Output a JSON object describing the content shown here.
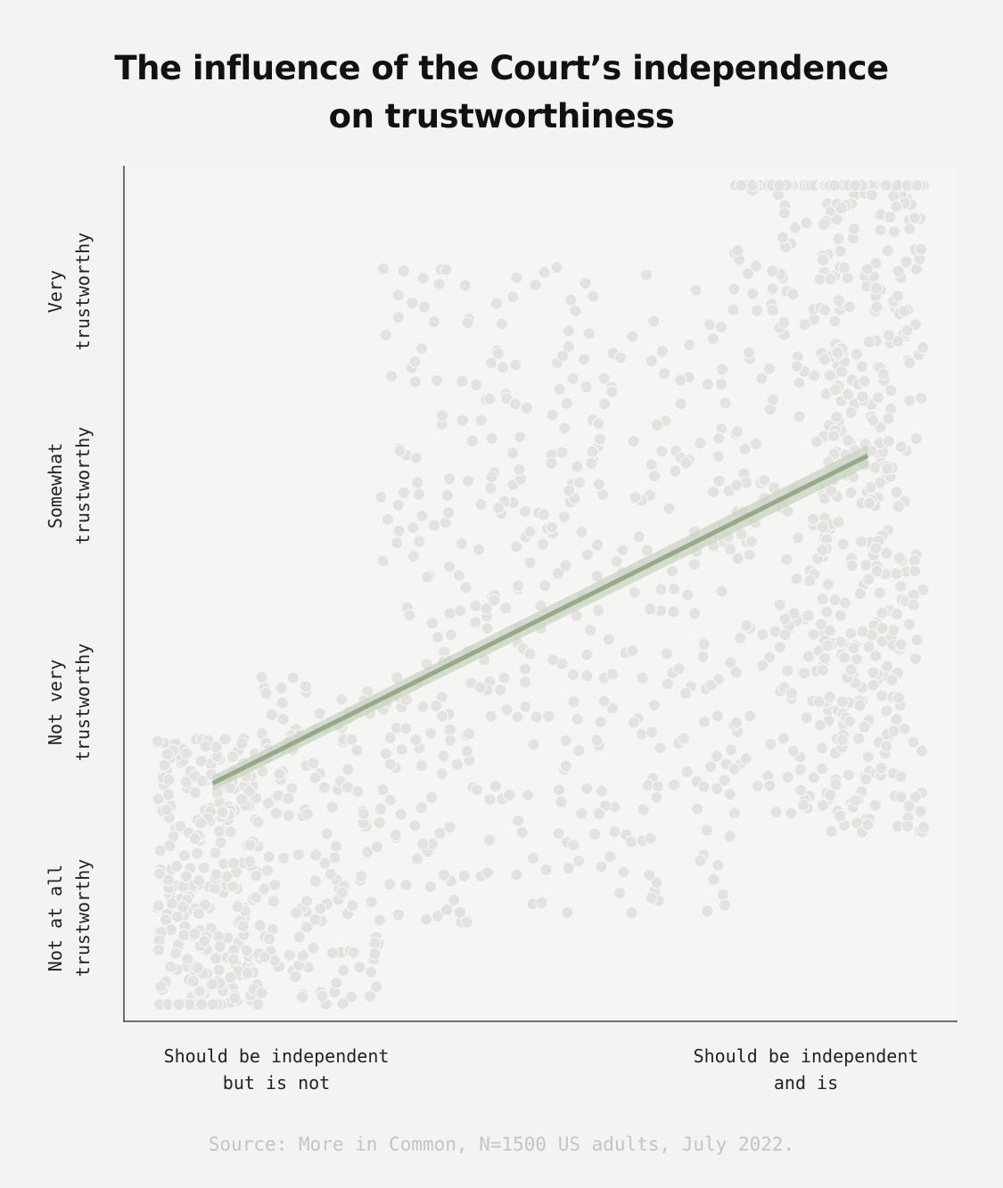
{
  "chart_data": {
    "type": "scatter",
    "title": [
      "The influence of the Court’s independence",
      "on trustworthiness"
    ],
    "source": "Source: More in Common, N=1500 US adults, July 2022.",
    "x_categories": [
      {
        "lines": [
          "Should be independent",
          "but is not"
        ],
        "x": 0.18
      },
      {
        "lines": [
          "Should be independent",
          "and is"
        ],
        "x": 0.82
      }
    ],
    "y_categories": [
      {
        "lines": [
          "Not at all",
          "trustworthy"
        ],
        "y": 0.06
      },
      {
        "lines": [
          "Not very",
          "trustworthy"
        ],
        "y": 0.32
      },
      {
        "lines": [
          "Somewhat",
          "trustworthy"
        ],
        "y": 0.58
      },
      {
        "lines": [
          "Very",
          "trustworthy"
        ],
        "y": 0.84
      }
    ],
    "xlim": [
      0,
      1
    ],
    "ylim": [
      0,
      1
    ],
    "n_respondents": 1500,
    "trend_line": {
      "x0": 0.09,
      "y0": 0.27,
      "x1": 0.91,
      "y1": 0.67,
      "ci": 0.013
    },
    "series": [
      {
        "points_description": "jittered respondent responses",
        "seed": 7,
        "count": 1500,
        "clusters": [
          {
            "share": 0.19,
            "x_range": [
              0.02,
              0.15
            ],
            "y_center": 0.15,
            "y_spread": 0.35
          },
          {
            "share": 0.1,
            "x_range": [
              0.15,
              0.3
            ],
            "y_center": 0.2,
            "y_spread": 0.4
          },
          {
            "share": 0.3,
            "x_range": [
              0.3,
              0.75
            ],
            "y_center": 0.5,
            "y_spread": 0.8
          },
          {
            "share": 0.14,
            "x_range": [
              0.74,
              0.88
            ],
            "y_center": 0.68,
            "y_spread": 0.9
          },
          {
            "share": 0.27,
            "x_range": [
              0.85,
              0.98
            ],
            "y_center": 0.68,
            "y_spread": 0.95
          }
        ]
      }
    ],
    "colors": {
      "points": "#e4e2df",
      "point_stroke": "#f5f6f4",
      "trend": "#98a88a",
      "trend_band": "#c9d1c1",
      "axis": "#444444"
    }
  }
}
